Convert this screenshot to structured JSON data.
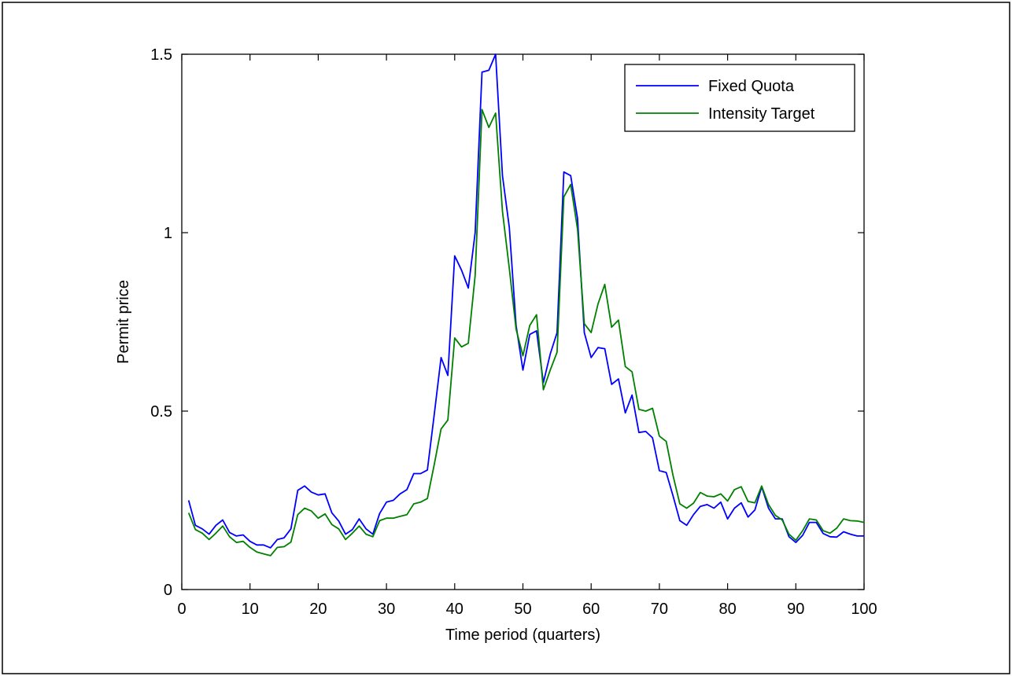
{
  "chart_data": {
    "type": "line",
    "title": "",
    "xlabel": "Time period (quarters)",
    "ylabel": "Permit price",
    "xlim": [
      0,
      100
    ],
    "ylim": [
      0,
      1.5
    ],
    "xticks": [
      0,
      10,
      20,
      30,
      40,
      50,
      60,
      70,
      80,
      90,
      100
    ],
    "yticks": [
      0,
      0.5,
      1,
      1.5
    ],
    "xtick_labels": [
      "0",
      "10",
      "20",
      "30",
      "40",
      "50",
      "60",
      "70",
      "80",
      "90",
      "100"
    ],
    "ytick_labels": [
      "0",
      "0.5",
      "1",
      "1.5"
    ],
    "grid": false,
    "legend_position": "top-right",
    "x": [
      1,
      2,
      3,
      4,
      5,
      6,
      7,
      8,
      9,
      10,
      11,
      12,
      13,
      14,
      15,
      16,
      17,
      18,
      19,
      20,
      21,
      22,
      23,
      24,
      25,
      26,
      27,
      28,
      29,
      30,
      31,
      32,
      33,
      34,
      35,
      36,
      37,
      38,
      39,
      40,
      41,
      42,
      43,
      44,
      45,
      46,
      47,
      48,
      49,
      50,
      51,
      52,
      53,
      54,
      55,
      56,
      57,
      58,
      59,
      60,
      61,
      62,
      63,
      64,
      65,
      66,
      67,
      68,
      69,
      70,
      71,
      72,
      73,
      74,
      75,
      76,
      77,
      78,
      79,
      80,
      81,
      82,
      83,
      84,
      85,
      86,
      87,
      88,
      89,
      90,
      91,
      92,
      93,
      94,
      95,
      96,
      97,
      98,
      99,
      100
    ],
    "series": [
      {
        "name": "Fixed Quota",
        "color": "#0000ff",
        "values": [
          0.25,
          0.18,
          0.17,
          0.155,
          0.18,
          0.195,
          0.16,
          0.15,
          0.153,
          0.135,
          0.125,
          0.125,
          0.117,
          0.14,
          0.145,
          0.17,
          0.278,
          0.29,
          0.273,
          0.265,
          0.268,
          0.215,
          0.192,
          0.155,
          0.168,
          0.198,
          0.17,
          0.155,
          0.213,
          0.245,
          0.25,
          0.268,
          0.28,
          0.325,
          0.325,
          0.335,
          0.49,
          0.65,
          0.6,
          0.935,
          0.895,
          0.845,
          1.0,
          1.45,
          1.455,
          1.5,
          1.16,
          1.015,
          0.74,
          0.615,
          0.715,
          0.725,
          0.58,
          0.66,
          0.72,
          1.17,
          1.16,
          1.04,
          0.72,
          0.65,
          0.678,
          0.675,
          0.575,
          0.59,
          0.495,
          0.545,
          0.44,
          0.443,
          0.425,
          0.333,
          0.328,
          0.263,
          0.193,
          0.18,
          0.21,
          0.233,
          0.238,
          0.228,
          0.245,
          0.198,
          0.228,
          0.243,
          0.203,
          0.223,
          0.288,
          0.228,
          0.198,
          0.198,
          0.148,
          0.132,
          0.152,
          0.188,
          0.188,
          0.157,
          0.148,
          0.147,
          0.162,
          0.155,
          0.15,
          0.15
        ]
      },
      {
        "name": "Intensity Target",
        "color": "#008000",
        "values": [
          0.215,
          0.168,
          0.158,
          0.14,
          0.158,
          0.178,
          0.148,
          0.132,
          0.135,
          0.118,
          0.105,
          0.1,
          0.095,
          0.118,
          0.12,
          0.133,
          0.21,
          0.228,
          0.22,
          0.2,
          0.212,
          0.182,
          0.17,
          0.14,
          0.158,
          0.178,
          0.155,
          0.148,
          0.193,
          0.2,
          0.2,
          0.205,
          0.21,
          0.24,
          0.245,
          0.255,
          0.35,
          0.45,
          0.475,
          0.705,
          0.68,
          0.69,
          0.88,
          1.345,
          1.295,
          1.335,
          1.06,
          0.9,
          0.73,
          0.655,
          0.74,
          0.77,
          0.56,
          0.615,
          0.665,
          1.1,
          1.135,
          1.01,
          0.745,
          0.72,
          0.8,
          0.855,
          0.735,
          0.755,
          0.625,
          0.61,
          0.505,
          0.5,
          0.508,
          0.43,
          0.415,
          0.32,
          0.24,
          0.228,
          0.242,
          0.272,
          0.262,
          0.26,
          0.268,
          0.248,
          0.28,
          0.288,
          0.247,
          0.243,
          0.29,
          0.238,
          0.208,
          0.195,
          0.155,
          0.138,
          0.165,
          0.198,
          0.195,
          0.165,
          0.158,
          0.172,
          0.198,
          0.193,
          0.192,
          0.188
        ]
      }
    ]
  }
}
